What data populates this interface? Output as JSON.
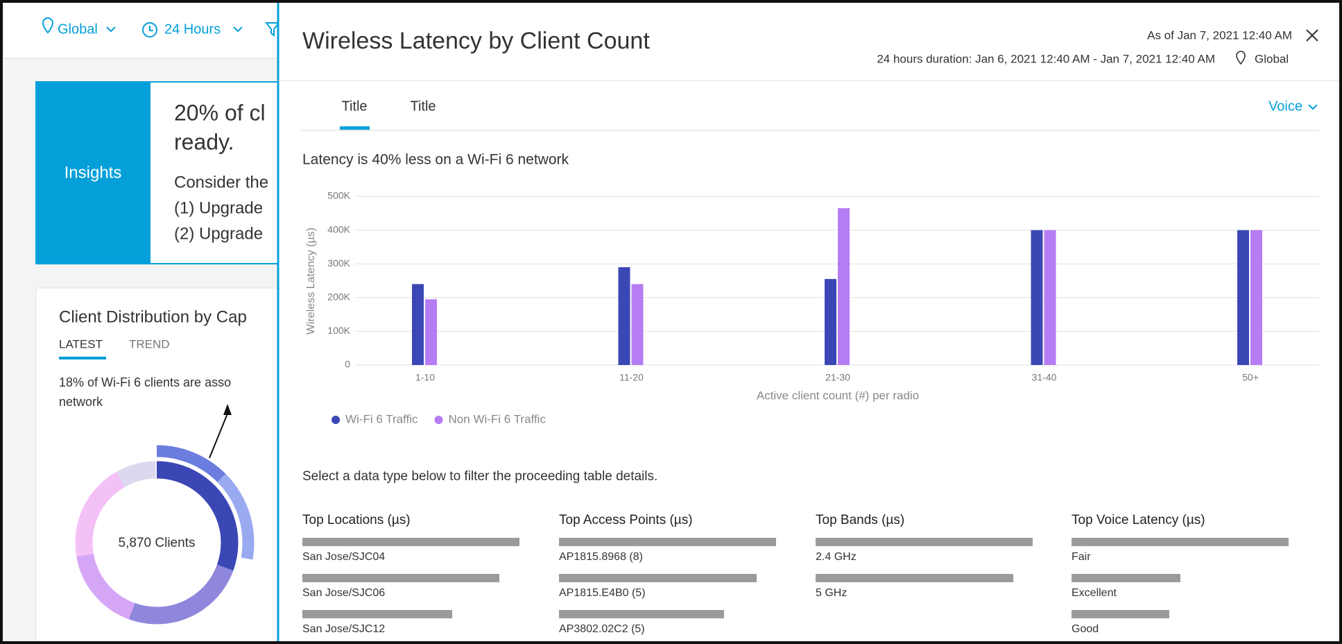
{
  "top_bar": {
    "location": "Global",
    "time": "24 Hours"
  },
  "insights": {
    "label": "Insights",
    "lines": [
      "20% of cl",
      "ready.",
      "Consider the",
      "(1) Upgrade",
      "(2) Upgrade"
    ]
  },
  "client_distribution": {
    "title": "Client Distribution by Cap",
    "tabs": [
      "LATEST",
      "TREND"
    ],
    "note": [
      "18% of Wi-Fi 6 clients are asso",
      "network"
    ],
    "center_label": "5,870 Clients"
  },
  "drawer": {
    "title": "Wireless Latency by Client Count",
    "as_of": "As of Jan 7, 2021 12:40 AM",
    "duration": "24 hours duration: Jan 6, 2021 12:40 AM - Jan 7, 2021 12:40 AM",
    "location": "Global",
    "tabs": [
      "Title",
      "Title"
    ],
    "filter": "Voice",
    "instruction": "Select a data type below to filter the proceeding table details.",
    "tables": [
      {
        "title": "Top Locations (µs)",
        "items": [
          "San Jose/SJC04",
          "San Jose/SJC06",
          "San Jose/SJC12"
        ]
      },
      {
        "title": "Top Access Points (µs)",
        "items": [
          "AP1815.8968 (8)",
          "AP1815.E4B0 (5)",
          "AP3802.02C2 (5)"
        ]
      },
      {
        "title": "Top Bands (µs)",
        "items": [
          "2.4 GHz",
          "5 GHz"
        ]
      },
      {
        "title": "Top Voice Latency (µs)",
        "items": [
          "Fair",
          "Excellent",
          "Good"
        ]
      }
    ]
  },
  "chart_data": {
    "type": "bar",
    "title": "Latency is 40% less on a Wi-Fi 6 network",
    "y_label": "Wireless Latency (µs)",
    "x_label": "Active client count (#) per radio",
    "categories": [
      "1-10",
      "11-20",
      "21-30",
      "31-40",
      "50+"
    ],
    "series": [
      {
        "name": "Wi-Fi 6 Traffic",
        "color": "#3b47b5",
        "values": [
          240000,
          290000,
          255000,
          400000,
          400000
        ]
      },
      {
        "name": "Non Wi-Fi 6 Traffic",
        "color": "#b67cf3",
        "values": [
          195000,
          240000,
          465000,
          400000,
          400000
        ]
      }
    ],
    "ylim": [
      0,
      500000
    ],
    "yticks": [
      0,
      {
        "value": 100000,
        "label": "100K"
      },
      {
        "value": 200000,
        "label": "200K"
      },
      {
        "value": 300000,
        "label": "300K"
      },
      {
        "value": 400000,
        "label": "400K"
      },
      {
        "value": 500000,
        "label": "500K"
      }
    ],
    "grid": true,
    "legend": "bottom-left"
  }
}
